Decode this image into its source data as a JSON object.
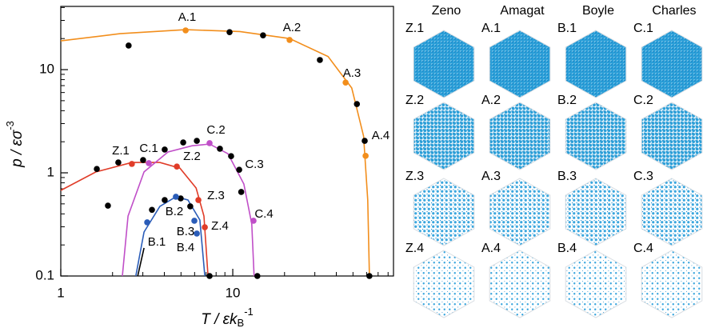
{
  "chart_data": {
    "type": "line",
    "xscale": "log",
    "yscale": "log",
    "x_label": {
      "main": "T / εk",
      "sub": "B",
      "sup": "-1"
    },
    "y_label": {
      "main": "p / εσ",
      "sup": "-3"
    },
    "xlim": [
      1,
      86
    ],
    "ylim": [
      0.1,
      41
    ],
    "xticks": [
      1,
      10
    ],
    "yticks": [
      0.1,
      1,
      10
    ],
    "xticks_minor": [
      2,
      3,
      4,
      5,
      6,
      7,
      8,
      9,
      20,
      30,
      40,
      50,
      60,
      70,
      80
    ],
    "yticks_minor": [
      0.2,
      0.3,
      0.4,
      0.5,
      0.6,
      0.7,
      0.8,
      0.9,
      2,
      3,
      4,
      5,
      6,
      7,
      8,
      9,
      20,
      30,
      40
    ],
    "series": [
      {
        "mode": "line",
        "color": "#f28e1c",
        "x": [
          1,
          2.21,
          5.32,
          11.0,
          21.4,
          35.8,
          49.2,
          57.6,
          60.9,
          62.3
        ],
        "values": [
          19.0,
          22.3,
          24.4,
          23.4,
          20.0,
          13.4,
          6.64,
          2.27,
          0.545,
          0.1
        ]
      },
      {
        "mode": "line",
        "color": "#e03c28",
        "x": [
          1,
          1.6,
          2.59,
          3.77,
          4.93,
          6.12,
          6.8,
          7.18
        ],
        "values": [
          0.675,
          1.02,
          1.26,
          1.26,
          1.11,
          0.713,
          0.381,
          0.1
        ]
      },
      {
        "mode": "line",
        "color": "#c04fc8",
        "x": [
          2.28,
          2.46,
          3.05,
          4.2,
          5.8,
          7.33,
          9.38,
          11.6,
          12.9,
          13.3
        ],
        "values": [
          0.1,
          0.381,
          1.02,
          1.59,
          1.83,
          1.9,
          1.53,
          0.779,
          0.319,
          0.1
        ]
      },
      {
        "mode": "line",
        "color": "#2a5cb8",
        "x": [
          2.73,
          3.05,
          3.77,
          4.67,
          5.49,
          6.44,
          6.88
        ],
        "values": [
          0.1,
          0.267,
          0.473,
          0.586,
          0.545,
          0.349,
          0.1
        ]
      },
      {
        "mode": "line",
        "color": "#000000",
        "x": [
          2.8,
          3.05
        ],
        "values": [
          0.1,
          0.187
        ]
      },
      {
        "mode": "markers",
        "color": "#000000",
        "x": [
          2.48,
          9.58,
          15.0,
          32.1,
          52.7,
          58.5,
          62.3,
          1.62,
          1.88,
          2.16,
          3.01,
          4.02,
          5.15,
          6.18,
          8.42,
          9.78,
          10.9,
          11.2,
          3.39,
          4.02,
          4.98,
          5.66,
          7.33,
          13.9
        ],
        "values": [
          17.1,
          23.1,
          21.5,
          12.4,
          4.64,
          2.04,
          0.1,
          1.09,
          0.481,
          1.26,
          1.33,
          1.68,
          1.97,
          2.04,
          1.71,
          1.45,
          1.07,
          0.652,
          0.438,
          0.545,
          0.565,
          0.473,
          0.1,
          0.1
        ]
      },
      {
        "mode": "markers",
        "color": "#f28e1c",
        "x": [
          5.32,
          21.4,
          45.3,
          59.2
        ],
        "values": [
          24.0,
          19.4,
          7.5,
          1.46
        ]
      },
      {
        "mode": "markers",
        "color": "#e03c28",
        "x": [
          2.59,
          4.73,
          6.31,
          6.88
        ],
        "values": [
          1.22,
          1.15,
          0.545,
          0.297
        ]
      },
      {
        "mode": "markers",
        "color": "#c04fc8",
        "x": [
          3.25,
          7.33,
          13.2
        ],
        "values": [
          1.24,
          1.94,
          0.343
        ]
      },
      {
        "mode": "markers",
        "color": "#2a5cb8",
        "x": [
          3.18,
          4.67,
          5.98,
          6.18
        ],
        "values": [
          0.331,
          0.586,
          0.343,
          0.258
        ]
      }
    ],
    "annotations": [
      "A.1",
      "A.2",
      "A.3",
      "A.4",
      "Z.1",
      "C.1",
      "Z.2",
      "C.2",
      "C.3",
      "Z.3",
      "B.2",
      "B.3",
      "Z.4",
      "B.1",
      "B.4",
      "C.4"
    ]
  },
  "snapshots": {
    "columns": [
      "Zeno",
      "Amagat",
      "Boyle",
      "Charles"
    ],
    "labels": [
      [
        "Z.1",
        "A.1",
        "B.1",
        "C.1"
      ],
      [
        "Z.2",
        "A.2",
        "B.2",
        "C.2"
      ],
      [
        "Z.3",
        "A.3",
        "B.3",
        "C.3"
      ],
      [
        "Z.4",
        "A.4",
        "B.4",
        "C.4"
      ]
    ]
  }
}
